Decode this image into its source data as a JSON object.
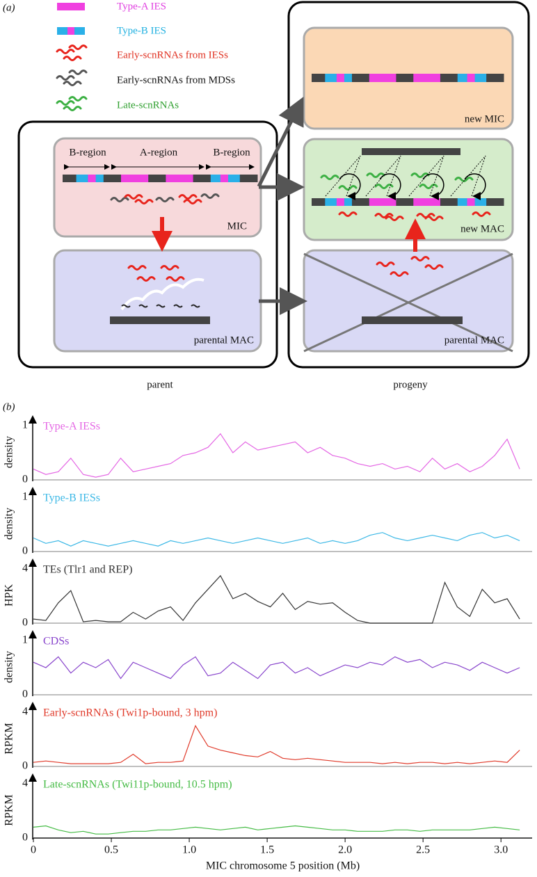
{
  "panel_a": {
    "label": "(a)",
    "legend": [
      "Type-A IES",
      "Type-B IES",
      "Early-scnRNAs from IESs",
      "Early-scnRNAs from MDSs",
      "Late-scnRNAs"
    ],
    "regions": [
      "B-region",
      "A-region",
      "B-region"
    ],
    "compartments": {
      "mic": "MIC",
      "parental_mac": "parental MAC",
      "new_mic": "new MIC",
      "new_mac": "new MAC",
      "progeny_parental_mac": "parental MAC"
    },
    "cells": [
      "parent",
      "progeny"
    ]
  },
  "panel_b": {
    "label": "(b)"
  },
  "chart_data": [
    {
      "type": "line",
      "annotation": "Type-A IESs",
      "ylabel": "density",
      "ylim": [
        0,
        1
      ],
      "yticks": [
        0,
        1
      ],
      "xlim": [
        0,
        3.2
      ],
      "x": [
        0,
        0.08,
        0.16,
        0.24,
        0.32,
        0.4,
        0.48,
        0.56,
        0.64,
        0.72,
        0.8,
        0.88,
        0.96,
        1.04,
        1.12,
        1.2,
        1.28,
        1.36,
        1.44,
        1.52,
        1.6,
        1.68,
        1.76,
        1.84,
        1.92,
        2,
        2.08,
        2.16,
        2.24,
        2.32,
        2.4,
        2.48,
        2.56,
        2.64,
        2.72,
        2.8,
        2.88,
        2.96,
        3.04,
        3.12
      ],
      "series": [
        {
          "color": "#e466e4",
          "values": [
            0.2,
            0.1,
            0.15,
            0.4,
            0.1,
            0.05,
            0.1,
            0.4,
            0.15,
            0.2,
            0.25,
            0.3,
            0.45,
            0.5,
            0.6,
            0.85,
            0.5,
            0.7,
            0.55,
            0.6,
            0.65,
            0.7,
            0.5,
            0.6,
            0.45,
            0.4,
            0.3,
            0.25,
            0.3,
            0.2,
            0.25,
            0.15,
            0.4,
            0.2,
            0.3,
            0.15,
            0.25,
            0.45,
            0.75,
            0.2
          ]
        }
      ]
    },
    {
      "type": "line",
      "annotation": "Type-B IESs",
      "ylabel": "density",
      "ylim": [
        0,
        1
      ],
      "yticks": [
        0,
        1
      ],
      "xlim": [
        0,
        3.2
      ],
      "x": [
        0,
        0.08,
        0.16,
        0.24,
        0.32,
        0.4,
        0.48,
        0.56,
        0.64,
        0.72,
        0.8,
        0.88,
        0.96,
        1.04,
        1.12,
        1.2,
        1.28,
        1.36,
        1.44,
        1.52,
        1.6,
        1.68,
        1.76,
        1.84,
        1.92,
        2,
        2.08,
        2.16,
        2.24,
        2.32,
        2.4,
        2.48,
        2.56,
        2.64,
        2.72,
        2.8,
        2.88,
        2.96,
        3.04,
        3.12
      ],
      "series": [
        {
          "color": "#3cb8e6",
          "values": [
            0.25,
            0.15,
            0.2,
            0.1,
            0.2,
            0.15,
            0.1,
            0.15,
            0.2,
            0.15,
            0.1,
            0.2,
            0.15,
            0.2,
            0.25,
            0.2,
            0.15,
            0.2,
            0.25,
            0.2,
            0.15,
            0.2,
            0.25,
            0.15,
            0.2,
            0.15,
            0.2,
            0.3,
            0.35,
            0.25,
            0.2,
            0.25,
            0.3,
            0.25,
            0.2,
            0.3,
            0.35,
            0.25,
            0.3,
            0.2
          ]
        }
      ]
    },
    {
      "type": "line",
      "annotation": "TEs (Tlr1 and REP)",
      "ylabel": "HPK",
      "ylim": [
        0,
        4
      ],
      "yticks": [
        0,
        4
      ],
      "xlim": [
        0,
        3.2
      ],
      "x": [
        0,
        0.08,
        0.16,
        0.24,
        0.32,
        0.4,
        0.48,
        0.56,
        0.64,
        0.72,
        0.8,
        0.88,
        0.96,
        1.04,
        1.12,
        1.2,
        1.28,
        1.36,
        1.44,
        1.52,
        1.6,
        1.68,
        1.76,
        1.84,
        1.92,
        2,
        2.08,
        2.16,
        2.24,
        2.32,
        2.4,
        2.48,
        2.56,
        2.64,
        2.72,
        2.8,
        2.88,
        2.96,
        3.04,
        3.12
      ],
      "series": [
        {
          "color": "#333333",
          "values": [
            0.3,
            0.2,
            1.5,
            2.4,
            0.1,
            0.2,
            0.1,
            0.1,
            0.8,
            0.3,
            0.9,
            1.2,
            0.2,
            1.5,
            2.5,
            3.5,
            1.8,
            2.2,
            1.6,
            1.2,
            2.2,
            1.0,
            1.6,
            1.4,
            1.5,
            0.8,
            0.2,
            0,
            0,
            0,
            0,
            0,
            0,
            3.0,
            1.2,
            0.5,
            2.5,
            1.5,
            1.8,
            0.3
          ]
        }
      ]
    },
    {
      "type": "line",
      "annotation": "CDSs",
      "ylabel": "density",
      "ylim": [
        0,
        1
      ],
      "yticks": [
        0,
        1
      ],
      "xlim": [
        0,
        3.2
      ],
      "x": [
        0,
        0.08,
        0.16,
        0.24,
        0.32,
        0.4,
        0.48,
        0.56,
        0.64,
        0.72,
        0.8,
        0.88,
        0.96,
        1.04,
        1.12,
        1.2,
        1.28,
        1.36,
        1.44,
        1.52,
        1.6,
        1.68,
        1.76,
        1.84,
        1.92,
        2,
        2.08,
        2.16,
        2.24,
        2.32,
        2.4,
        2.48,
        2.56,
        2.64,
        2.72,
        2.8,
        2.88,
        2.96,
        3.04,
        3.12
      ],
      "series": [
        {
          "color": "#8844cc",
          "values": [
            0.6,
            0.5,
            0.7,
            0.4,
            0.6,
            0.5,
            0.65,
            0.3,
            0.6,
            0.5,
            0.4,
            0.3,
            0.55,
            0.7,
            0.35,
            0.4,
            0.6,
            0.45,
            0.3,
            0.55,
            0.6,
            0.4,
            0.5,
            0.35,
            0.45,
            0.55,
            0.5,
            0.6,
            0.55,
            0.7,
            0.6,
            0.65,
            0.5,
            0.6,
            0.55,
            0.45,
            0.6,
            0.5,
            0.4,
            0.5
          ]
        }
      ]
    },
    {
      "type": "line",
      "annotation": "Early-scnRNAs (Twi1p-bound, 3 hpm)",
      "ylabel": "RPKM",
      "ylim": [
        0,
        4
      ],
      "yticks": [
        0,
        4
      ],
      "xlim": [
        0,
        3.2
      ],
      "x": [
        0,
        0.08,
        0.16,
        0.24,
        0.32,
        0.4,
        0.48,
        0.56,
        0.64,
        0.72,
        0.8,
        0.88,
        0.96,
        1.04,
        1.12,
        1.2,
        1.28,
        1.36,
        1.44,
        1.52,
        1.6,
        1.68,
        1.76,
        1.84,
        1.92,
        2,
        2.08,
        2.16,
        2.24,
        2.32,
        2.4,
        2.48,
        2.56,
        2.64,
        2.72,
        2.8,
        2.88,
        2.96,
        3.04,
        3.12
      ],
      "series": [
        {
          "color": "#e03a2a",
          "values": [
            0.3,
            0.4,
            0.3,
            0.2,
            0.2,
            0.2,
            0.2,
            0.3,
            0.9,
            0.2,
            0.3,
            0.3,
            0.4,
            3.0,
            1.5,
            1.2,
            1.0,
            0.8,
            0.7,
            1.1,
            0.6,
            0.5,
            0.6,
            0.5,
            0.4,
            0.3,
            0.3,
            0.3,
            0.2,
            0.3,
            0.2,
            0.3,
            0.3,
            0.2,
            0.3,
            0.2,
            0.3,
            0.4,
            0.3,
            1.2
          ]
        }
      ]
    },
    {
      "type": "line",
      "annotation": "Late-scnRNAs (Twi11p-bound, 10.5 hpm)",
      "ylabel": "RPKM",
      "ylim": [
        0,
        4
      ],
      "yticks": [
        0,
        4
      ],
      "xlim": [
        0,
        3.2
      ],
      "x": [
        0,
        0.08,
        0.16,
        0.24,
        0.32,
        0.4,
        0.48,
        0.56,
        0.64,
        0.72,
        0.8,
        0.88,
        0.96,
        1.04,
        1.12,
        1.2,
        1.28,
        1.36,
        1.44,
        1.52,
        1.6,
        1.68,
        1.76,
        1.84,
        1.92,
        2,
        2.08,
        2.16,
        2.24,
        2.32,
        2.4,
        2.48,
        2.56,
        2.64,
        2.72,
        2.8,
        2.88,
        2.96,
        3.04,
        3.12
      ],
      "xlabel": "MIC chromosome 5 position (Mb)",
      "xticks": [
        0,
        0.5,
        {
          "value": 1,
          "label": "1.0"
        },
        1.5,
        {
          "value": 2,
          "label": "2.0"
        },
        2.5,
        {
          "value": 3,
          "label": "3.0"
        }
      ],
      "series": [
        {
          "color": "#44bb44",
          "values": [
            0.8,
            0.9,
            0.6,
            0.4,
            0.5,
            0.3,
            0.3,
            0.4,
            0.5,
            0.5,
            0.6,
            0.6,
            0.7,
            0.8,
            0.7,
            0.6,
            0.7,
            0.8,
            0.6,
            0.7,
            0.8,
            0.9,
            0.8,
            0.7,
            0.6,
            0.6,
            0.5,
            0.5,
            0.5,
            0.6,
            0.6,
            0.5,
            0.6,
            0.6,
            0.6,
            0.6,
            0.7,
            0.8,
            0.7,
            0.6
          ]
        }
      ]
    }
  ]
}
